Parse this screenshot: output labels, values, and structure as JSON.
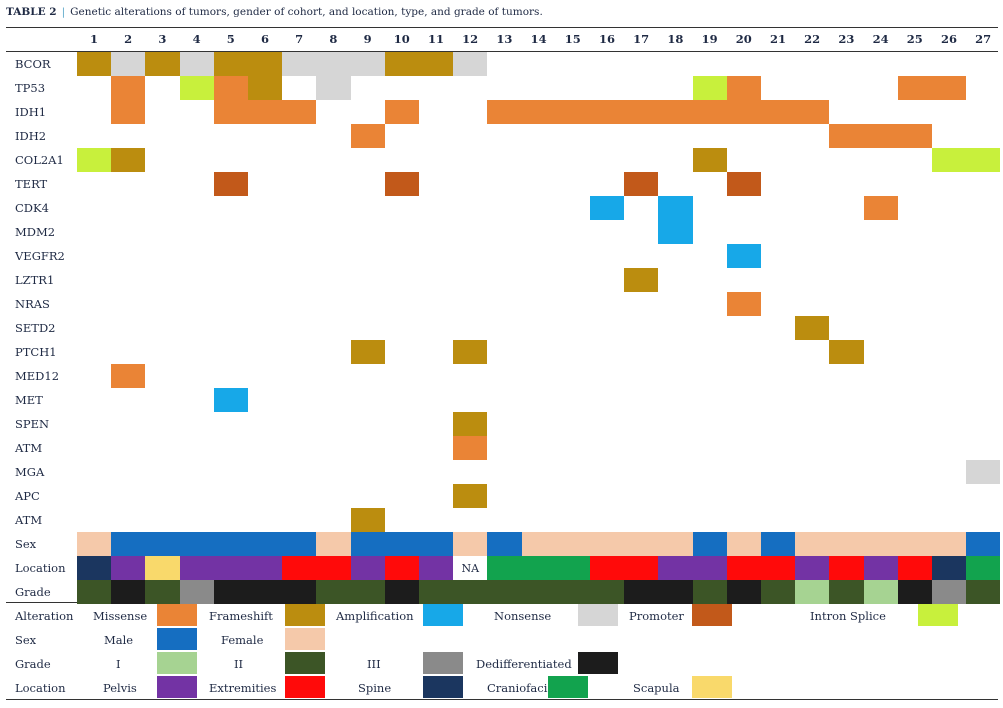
{
  "caption": {
    "label": "TABLE 2",
    "separator": "|",
    "text": "Genetic alterations of tumors, gender of cohort, and location, type, and grade of tumors."
  },
  "columns": [
    "1",
    "2",
    "3",
    "4",
    "5",
    "6",
    "7",
    "8",
    "9",
    "10",
    "11",
    "12",
    "13",
    "14",
    "15",
    "16",
    "17",
    "18",
    "19",
    "20",
    "21",
    "22",
    "23",
    "24",
    "25",
    "26",
    "27"
  ],
  "colors": {
    "Missense": "#ea8436",
    "Frameshift": "#bb8d0f",
    "Amplification": "#17a8e8",
    "Nonsense": "#d6d6d6",
    "Promoter": "#c2591a",
    "IntronSplice": "#c8f03c",
    "Male": "#156ec1",
    "Female": "#f5c9aa",
    "GradeI": "#a6d392",
    "GradeII": "#3c5526",
    "GradeIII": "#8a8a8a",
    "Dedifferentiated": "#1c1c1c",
    "Pelvis": "#7333a4",
    "Extremities": "#ff0a0a",
    "Spine": "#1b365f",
    "Craniofacial": "#12a34e",
    "Scapula": "#f9d96b",
    "NA": "#ffffff"
  },
  "rows": [
    {
      "label": "BCOR",
      "segments": [
        [
          1,
          1,
          "Frameshift"
        ],
        [
          2,
          2,
          "Nonsense"
        ],
        [
          3,
          3,
          "Frameshift"
        ],
        [
          4,
          4,
          "Nonsense"
        ],
        [
          5,
          6,
          "Frameshift"
        ],
        [
          7,
          9,
          "Nonsense"
        ],
        [
          10,
          11,
          "Frameshift"
        ],
        [
          12,
          12,
          "Nonsense"
        ]
      ]
    },
    {
      "label": "TP53",
      "segments": [
        [
          2,
          2,
          "Missense"
        ],
        [
          4,
          4,
          "IntronSplice"
        ],
        [
          5,
          5,
          "Missense"
        ],
        [
          6,
          6,
          "Frameshift"
        ],
        [
          8,
          8,
          "Nonsense"
        ],
        [
          19,
          19,
          "IntronSplice"
        ],
        [
          20,
          20,
          "Missense"
        ],
        [
          25,
          26,
          "Missense"
        ]
      ]
    },
    {
      "label": "IDH1",
      "segments": [
        [
          2,
          2,
          "Missense"
        ],
        [
          5,
          7,
          "Missense"
        ],
        [
          10,
          10,
          "Missense"
        ],
        [
          13,
          22,
          "Missense"
        ]
      ]
    },
    {
      "label": "IDH2",
      "segments": [
        [
          9,
          9,
          "Missense"
        ],
        [
          23,
          25,
          "Missense"
        ]
      ]
    },
    {
      "label": "COL2A1",
      "segments": [
        [
          1,
          1,
          "IntronSplice"
        ],
        [
          2,
          2,
          "Frameshift"
        ],
        [
          19,
          19,
          "Frameshift"
        ],
        [
          26,
          27,
          "IntronSplice"
        ]
      ]
    },
    {
      "label": "TERT",
      "segments": [
        [
          5,
          5,
          "Promoter"
        ],
        [
          10,
          10,
          "Promoter"
        ],
        [
          17,
          17,
          "Promoter"
        ],
        [
          20,
          20,
          "Promoter"
        ]
      ]
    },
    {
      "label": "CDK4",
      "segments": [
        [
          16,
          16,
          "Amplification"
        ],
        [
          18,
          18,
          "Amplification"
        ],
        [
          24,
          24,
          "Missense"
        ]
      ]
    },
    {
      "label": "MDM2",
      "segments": [
        [
          18,
          18,
          "Amplification"
        ]
      ]
    },
    {
      "label": "VEGFR2",
      "segments": [
        [
          20,
          20,
          "Amplification"
        ]
      ]
    },
    {
      "label": "LZTR1",
      "segments": [
        [
          17,
          17,
          "Frameshift"
        ]
      ]
    },
    {
      "label": "NRAS",
      "segments": [
        [
          20,
          20,
          "Missense"
        ]
      ]
    },
    {
      "label": "SETD2",
      "segments": [
        [
          22,
          22,
          "Frameshift"
        ]
      ]
    },
    {
      "label": "PTCH1",
      "segments": [
        [
          9,
          9,
          "Frameshift"
        ],
        [
          12,
          12,
          "Frameshift"
        ],
        [
          23,
          23,
          "Frameshift"
        ]
      ]
    },
    {
      "label": "MED12",
      "segments": [
        [
          2,
          2,
          "Missense"
        ]
      ]
    },
    {
      "label": "MET",
      "segments": [
        [
          5,
          5,
          "Amplification"
        ]
      ]
    },
    {
      "label": "SPEN",
      "segments": [
        [
          12,
          12,
          "Frameshift"
        ]
      ]
    },
    {
      "label": "ATM",
      "segments": [
        [
          12,
          12,
          "Missense"
        ]
      ]
    },
    {
      "label": "MGA",
      "segments": [
        [
          27,
          27,
          "Nonsense"
        ]
      ]
    },
    {
      "label": "APC",
      "segments": [
        [
          12,
          12,
          "Frameshift"
        ]
      ]
    },
    {
      "label": "ATM",
      "segments": [
        [
          9,
          9,
          "Frameshift"
        ]
      ]
    },
    {
      "label": "Sex",
      "segments": [
        [
          1,
          1,
          "Female"
        ],
        [
          2,
          7,
          "Male"
        ],
        [
          8,
          8,
          "Female"
        ],
        [
          9,
          11,
          "Male"
        ],
        [
          12,
          12,
          "Female"
        ],
        [
          13,
          13,
          "Male"
        ],
        [
          14,
          18,
          "Female"
        ],
        [
          19,
          19,
          "Male"
        ],
        [
          20,
          20,
          "Female"
        ],
        [
          21,
          21,
          "Male"
        ],
        [
          22,
          26,
          "Female"
        ],
        [
          27,
          27,
          "Male"
        ]
      ]
    },
    {
      "label": "Location",
      "segments": [
        [
          1,
          1,
          "Spine"
        ],
        [
          2,
          2,
          "Pelvis"
        ],
        [
          3,
          3,
          "Scapula"
        ],
        [
          4,
          6,
          "Pelvis"
        ],
        [
          7,
          8,
          "Extremities"
        ],
        [
          9,
          9,
          "Pelvis"
        ],
        [
          10,
          10,
          "Extremities"
        ],
        [
          11,
          11,
          "Pelvis"
        ],
        [
          12,
          12,
          "NA"
        ],
        [
          13,
          15,
          "Craniofacial"
        ],
        [
          16,
          17,
          "Extremities"
        ],
        [
          18,
          19,
          "Pelvis"
        ],
        [
          20,
          21,
          "Extremities"
        ],
        [
          22,
          22,
          "Pelvis"
        ],
        [
          23,
          23,
          "Extremities"
        ],
        [
          24,
          24,
          "Pelvis"
        ],
        [
          25,
          25,
          "Extremities"
        ],
        [
          26,
          26,
          "Spine"
        ],
        [
          27,
          27,
          "Craniofacial"
        ]
      ],
      "na_text": "NA"
    },
    {
      "label": "Grade",
      "segments": [
        [
          1,
          1,
          "GradeII"
        ],
        [
          2,
          2,
          "Dedifferentiated"
        ],
        [
          3,
          3,
          "GradeII"
        ],
        [
          4,
          4,
          "GradeIII"
        ],
        [
          5,
          7,
          "Dedifferentiated"
        ],
        [
          8,
          8,
          "GradeII"
        ],
        [
          9,
          9,
          "GradeII"
        ],
        [
          10,
          10,
          "Dedifferentiated"
        ],
        [
          11,
          16,
          "GradeII"
        ],
        [
          17,
          18,
          "Dedifferentiated"
        ],
        [
          19,
          19,
          "GradeII"
        ],
        [
          20,
          20,
          "Dedifferentiated"
        ],
        [
          21,
          21,
          "GradeII"
        ],
        [
          22,
          22,
          "GradeI"
        ],
        [
          23,
          23,
          "GradeII"
        ],
        [
          24,
          24,
          "GradeI"
        ],
        [
          25,
          25,
          "Dedifferentiated"
        ],
        [
          26,
          26,
          "GradeIII"
        ],
        [
          27,
          27,
          "GradeII"
        ]
      ]
    }
  ],
  "legend": {
    "alteration": {
      "title": "Alteration",
      "items": [
        {
          "label": "Missense",
          "color": "#ea8436"
        },
        {
          "label": "Frameshift",
          "color": "#bb8d0f"
        },
        {
          "label": "Amplification",
          "color": "#17a8e8"
        },
        {
          "label": "Nonsense",
          "color": "#d6d6d6"
        },
        {
          "label": "Promoter",
          "color": "#c2591a"
        },
        {
          "label": "Intron Splice",
          "color": "#c8f03c"
        }
      ]
    },
    "sex": {
      "title": "Sex",
      "items": [
        {
          "label": "Male",
          "color": "#156ec1"
        },
        {
          "label": "Female",
          "color": "#f5c9aa"
        }
      ]
    },
    "grade": {
      "title": "Grade",
      "items": [
        {
          "label": "I",
          "color": "#a6d392"
        },
        {
          "label": "II",
          "color": "#3c5526"
        },
        {
          "label": "III",
          "color": "#8a8a8a"
        },
        {
          "label": "Dedifferentiated",
          "color": "#1c1c1c"
        }
      ]
    },
    "location": {
      "title": "Location",
      "items": [
        {
          "label": "Pelvis",
          "color": "#7333a4"
        },
        {
          "label": "Extremities",
          "color": "#ff0a0a"
        },
        {
          "label": "Spine",
          "color": "#1b365f"
        },
        {
          "label": "Craniofacial",
          "color": "#12a34e"
        },
        {
          "label": "Scapula",
          "color": "#f9d96b"
        }
      ]
    }
  }
}
